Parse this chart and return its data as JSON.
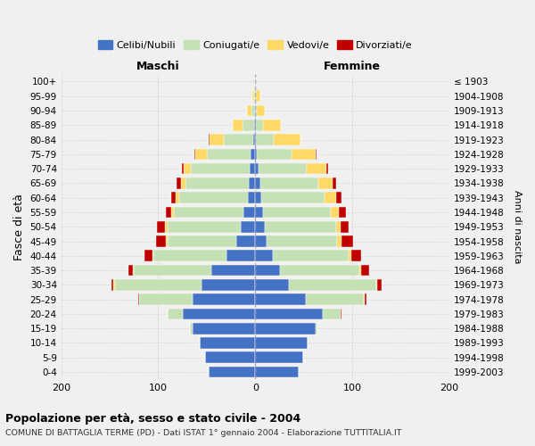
{
  "age_groups": [
    "0-4",
    "5-9",
    "10-14",
    "15-19",
    "20-24",
    "25-29",
    "30-34",
    "35-39",
    "40-44",
    "45-49",
    "50-54",
    "55-59",
    "60-64",
    "65-69",
    "70-74",
    "75-79",
    "80-84",
    "85-89",
    "90-94",
    "95-99",
    "100+"
  ],
  "birth_years": [
    "1999-2003",
    "1994-1998",
    "1989-1993",
    "1984-1988",
    "1979-1983",
    "1974-1978",
    "1969-1973",
    "1964-1968",
    "1959-1963",
    "1954-1958",
    "1949-1953",
    "1944-1948",
    "1939-1943",
    "1934-1938",
    "1929-1933",
    "1924-1928",
    "1919-1923",
    "1914-1918",
    "1909-1913",
    "1904-1908",
    "≤ 1903"
  ],
  "males": {
    "single": [
      48,
      52,
      57,
      65,
      75,
      65,
      55,
      45,
      30,
      20,
      15,
      12,
      8,
      7,
      6,
      5,
      2,
      1,
      0,
      0,
      0
    ],
    "married": [
      0,
      0,
      0,
      2,
      15,
      55,
      90,
      80,
      75,
      70,
      75,
      72,
      70,
      65,
      60,
      45,
      30,
      12,
      4,
      1,
      0
    ],
    "widowed": [
      0,
      0,
      0,
      0,
      0,
      0,
      1,
      1,
      1,
      2,
      3,
      3,
      4,
      5,
      8,
      12,
      15,
      10,
      5,
      2,
      0
    ],
    "divorced": [
      0,
      0,
      0,
      0,
      0,
      1,
      2,
      5,
      8,
      10,
      8,
      5,
      5,
      4,
      2,
      1,
      1,
      0,
      0,
      0,
      0
    ]
  },
  "females": {
    "single": [
      45,
      49,
      54,
      62,
      70,
      52,
      35,
      25,
      18,
      12,
      10,
      8,
      6,
      5,
      3,
      2,
      1,
      1,
      0,
      0,
      0
    ],
    "married": [
      0,
      0,
      0,
      2,
      18,
      60,
      90,
      82,
      78,
      72,
      73,
      70,
      65,
      60,
      50,
      35,
      18,
      7,
      2,
      1,
      0
    ],
    "widowed": [
      0,
      0,
      0,
      0,
      0,
      1,
      1,
      2,
      3,
      5,
      5,
      8,
      12,
      15,
      20,
      25,
      28,
      18,
      8,
      4,
      1
    ],
    "divorced": [
      0,
      0,
      0,
      0,
      1,
      2,
      4,
      8,
      10,
      12,
      8,
      7,
      6,
      3,
      2,
      1,
      0,
      0,
      0,
      0,
      0
    ]
  },
  "colors": {
    "single": "#4472C4",
    "married": "#C5E0B4",
    "widowed": "#FFD966",
    "divorced": "#C00000"
  },
  "legend_labels": {
    "single": "Celibi/Nubili",
    "married": "Coniugati/e",
    "widowed": "Vedovi/e",
    "divorced": "Divorziati/e"
  },
  "xlim": 200,
  "xticks": [
    -200,
    -100,
    0,
    100,
    200
  ],
  "title": "Popolazione per età, sesso e stato civile - 2004",
  "subtitle": "COMUNE DI BATTAGLIA TERME (PD) - Dati ISTAT 1° gennaio 2004 - Elaborazione TUTTITALIA.IT",
  "label_maschi": "Maschi",
  "label_femmine": "Femmine",
  "ylabel": "Fasce di età",
  "ylabel_right": "Anni di nascita",
  "bg_color": "#f0f0f0",
  "plot_bg": "#f0f0f0",
  "grid_color": "#cccccc"
}
